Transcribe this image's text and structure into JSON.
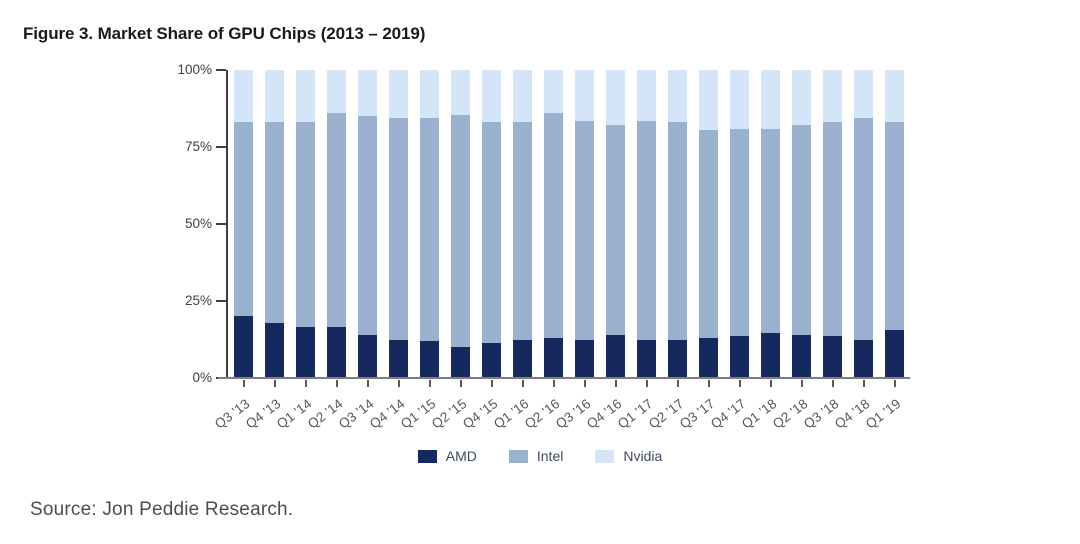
{
  "title": "Figure 3. Market Share of GPU Chips (2013 – 2019)",
  "source_label": "Source: Jon Peddie Research.",
  "chart_data": {
    "type": "bar",
    "stacked": true,
    "title": "Figure 3. Market Share of GPU Chips (2013 – 2019)",
    "xlabel": "",
    "ylabel": "",
    "ylim": [
      0,
      100
    ],
    "grid": false,
    "legend_position": "bottom",
    "y_ticks": [
      {
        "label": "100%",
        "value": 100
      },
      {
        "label": "75%",
        "value": 75
      },
      {
        "label": "50%",
        "value": 50
      },
      {
        "label": "25%",
        "value": 25
      },
      {
        "label": "0%",
        "value": 0
      }
    ],
    "categories": [
      "Q3 '13",
      "Q4 '13",
      "Q1 '14",
      "Q2 '14",
      "Q3 '14",
      "Q4 '14",
      "Q1 '15",
      "Q2 '15",
      "Q4 '15",
      "Q1 '16",
      "Q2 '16",
      "Q3 '16",
      "Q4 '16",
      "Q1 '17",
      "Q2 '17",
      "Q3 '17",
      "Q4 '17",
      "Q1 '18",
      "Q2 '18",
      "Q3 '18",
      "Q4 '18",
      "Q1 '19"
    ],
    "series": [
      {
        "name": "AMD",
        "color": "#15295e",
        "values": [
          20,
          18,
          16.5,
          16.5,
          14,
          12.5,
          12,
          10,
          11.5,
          12.5,
          13,
          12.5,
          14,
          12.5,
          12.5,
          13,
          13.5,
          14.5,
          14,
          13.5,
          12.5,
          15.5
        ]
      },
      {
        "name": "Intel",
        "color": "#9ab1d0",
        "values": [
          63,
          65,
          66.5,
          69.5,
          71,
          72,
          72.5,
          75.5,
          71.5,
          70.5,
          73,
          71,
          68,
          71,
          70.5,
          67.5,
          67.5,
          66.5,
          68,
          69.5,
          72,
          67.5
        ]
      },
      {
        "name": "Nvidia",
        "color": "#d3e5f6",
        "values": [
          17,
          17,
          17,
          14,
          15,
          15.5,
          15.5,
          14.5,
          17,
          17,
          14,
          16.5,
          18,
          16.5,
          17,
          19.5,
          19,
          19,
          18,
          17,
          15.5,
          17
        ]
      }
    ]
  }
}
